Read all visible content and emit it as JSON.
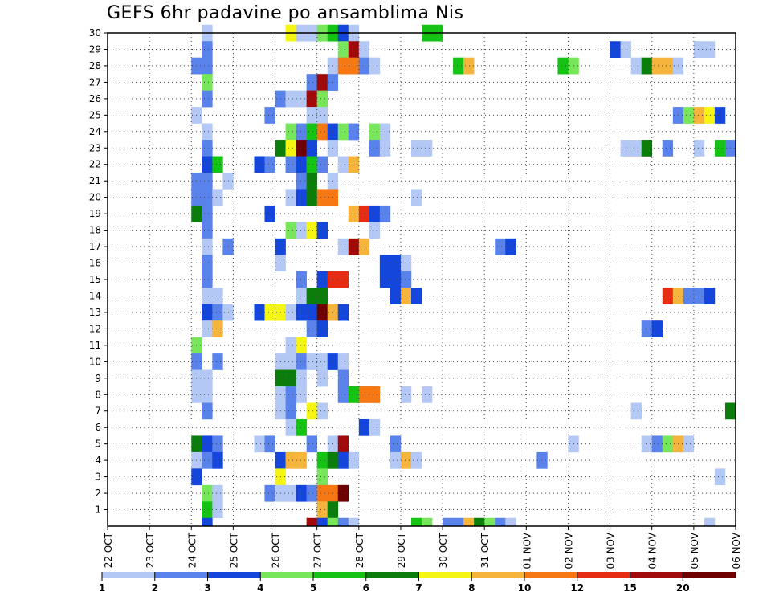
{
  "chart_data": {
    "type": "heatmap",
    "title": "GEFS 6hr padavine po ansamblima Nis",
    "xlabel": "",
    "ylabel": "",
    "y_min": 0,
    "y_max": 30,
    "y_ticks": [
      1,
      2,
      3,
      4,
      5,
      6,
      7,
      8,
      9,
      10,
      11,
      12,
      13,
      14,
      15,
      16,
      17,
      18,
      19,
      20,
      21,
      22,
      23,
      24,
      25,
      26,
      27,
      28,
      29,
      30
    ],
    "x_slots": 60,
    "x_ticks": [
      {
        "label": "22 OCT",
        "slot": 0
      },
      {
        "label": "23 OCT",
        "slot": 4
      },
      {
        "label": "24 OCT",
        "slot": 8
      },
      {
        "label": "25 OCT",
        "slot": 12
      },
      {
        "label": "26 OCT",
        "slot": 16
      },
      {
        "label": "27 OCT",
        "slot": 20
      },
      {
        "label": "28 OCT",
        "slot": 24
      },
      {
        "label": "29 OCT",
        "slot": 28
      },
      {
        "label": "30 OCT",
        "slot": 32
      },
      {
        "label": "31 OCT",
        "slot": 36
      },
      {
        "label": "01 NOV",
        "slot": 40
      },
      {
        "label": "02 NOV",
        "slot": 44
      },
      {
        "label": "03 NOV",
        "slot": 48
      },
      {
        "label": "04 NOV",
        "slot": 52
      },
      {
        "label": "05 NOV",
        "slot": 56
      },
      {
        "label": "06 NOV",
        "slot": 60
      }
    ],
    "legend_levels": [
      "1",
      "2",
      "3",
      "4",
      "5",
      "6",
      "7",
      "8",
      "10",
      "12",
      "15",
      "20"
    ],
    "colors": [
      "#b4c8f5",
      "#5a82eb",
      "#1446dc",
      "#78e65a",
      "#14c314",
      "#0a7d0a",
      "#f5f514",
      "#f5b43c",
      "#f57814",
      "#e62d14",
      "#a00a0a",
      "#6e0000"
    ],
    "cells": [
      {
        "x": 9,
        "y": 30,
        "c": 0
      },
      {
        "x": 17,
        "y": 30,
        "c": 6
      },
      {
        "x": 18,
        "y": 30,
        "c": 0
      },
      {
        "x": 19,
        "y": 30,
        "c": 0
      },
      {
        "x": 20,
        "y": 30,
        "c": 3
      },
      {
        "x": 21,
        "y": 30,
        "c": 4
      },
      {
        "x": 22,
        "y": 30,
        "c": 2
      },
      {
        "x": 23,
        "y": 30,
        "c": 0
      },
      {
        "x": 30,
        "y": 30,
        "c": 4
      },
      {
        "x": 31,
        "y": 30,
        "c": 4
      },
      {
        "x": 9,
        "y": 29,
        "c": 1
      },
      {
        "x": 22,
        "y": 29,
        "c": 3
      },
      {
        "x": 23,
        "y": 29,
        "c": 10
      },
      {
        "x": 24,
        "y": 29,
        "c": 0
      },
      {
        "x": 48,
        "y": 29,
        "c": 2
      },
      {
        "x": 49,
        "y": 29,
        "c": 0
      },
      {
        "x": 56,
        "y": 29,
        "c": 0
      },
      {
        "x": 57,
        "y": 29,
        "c": 0
      },
      {
        "x": 8,
        "y": 28,
        "c": 1
      },
      {
        "x": 9,
        "y": 28,
        "c": 1
      },
      {
        "x": 21,
        "y": 28,
        "c": 0
      },
      {
        "x": 22,
        "y": 28,
        "c": 8
      },
      {
        "x": 23,
        "y": 28,
        "c": 8
      },
      {
        "x": 24,
        "y": 28,
        "c": 1
      },
      {
        "x": 25,
        "y": 28,
        "c": 0
      },
      {
        "x": 33,
        "y": 28,
        "c": 4
      },
      {
        "x": 34,
        "y": 28,
        "c": 7
      },
      {
        "x": 43,
        "y": 28,
        "c": 4
      },
      {
        "x": 44,
        "y": 28,
        "c": 3
      },
      {
        "x": 50,
        "y": 28,
        "c": 0
      },
      {
        "x": 51,
        "y": 28,
        "c": 5
      },
      {
        "x": 52,
        "y": 28,
        "c": 7
      },
      {
        "x": 53,
        "y": 28,
        "c": 7
      },
      {
        "x": 54,
        "y": 28,
        "c": 0
      },
      {
        "x": 9,
        "y": 27,
        "c": 3
      },
      {
        "x": 19,
        "y": 27,
        "c": 1
      },
      {
        "x": 20,
        "y": 27,
        "c": 10
      },
      {
        "x": 21,
        "y": 27,
        "c": 1
      },
      {
        "x": 9,
        "y": 26,
        "c": 1
      },
      {
        "x": 16,
        "y": 26,
        "c": 1
      },
      {
        "x": 17,
        "y": 26,
        "c": 0
      },
      {
        "x": 18,
        "y": 26,
        "c": 0
      },
      {
        "x": 19,
        "y": 26,
        "c": 10
      },
      {
        "x": 20,
        "y": 26,
        "c": 3
      },
      {
        "x": 8,
        "y": 25,
        "c": 0
      },
      {
        "x": 15,
        "y": 25,
        "c": 1
      },
      {
        "x": 19,
        "y": 25,
        "c": 0
      },
      {
        "x": 20,
        "y": 25,
        "c": 0
      },
      {
        "x": 54,
        "y": 25,
        "c": 1
      },
      {
        "x": 55,
        "y": 25,
        "c": 3
      },
      {
        "x": 56,
        "y": 25,
        "c": 7
      },
      {
        "x": 57,
        "y": 25,
        "c": 6
      },
      {
        "x": 58,
        "y": 25,
        "c": 2
      },
      {
        "x": 9,
        "y": 24,
        "c": 0
      },
      {
        "x": 17,
        "y": 24,
        "c": 3
      },
      {
        "x": 18,
        "y": 24,
        "c": 1
      },
      {
        "x": 19,
        "y": 24,
        "c": 4
      },
      {
        "x": 20,
        "y": 24,
        "c": 8
      },
      {
        "x": 21,
        "y": 24,
        "c": 2
      },
      {
        "x": 22,
        "y": 24,
        "c": 3
      },
      {
        "x": 23,
        "y": 24,
        "c": 1
      },
      {
        "x": 25,
        "y": 24,
        "c": 3
      },
      {
        "x": 26,
        "y": 24,
        "c": 0
      },
      {
        "x": 9,
        "y": 23,
        "c": 1
      },
      {
        "x": 16,
        "y": 23,
        "c": 5
      },
      {
        "x": 17,
        "y": 23,
        "c": 6
      },
      {
        "x": 18,
        "y": 23,
        "c": 11
      },
      {
        "x": 19,
        "y": 23,
        "c": 2
      },
      {
        "x": 21,
        "y": 23,
        "c": 0
      },
      {
        "x": 25,
        "y": 23,
        "c": 1
      },
      {
        "x": 26,
        "y": 23,
        "c": 0
      },
      {
        "x": 29,
        "y": 23,
        "c": 0
      },
      {
        "x": 30,
        "y": 23,
        "c": 0
      },
      {
        "x": 49,
        "y": 23,
        "c": 0
      },
      {
        "x": 50,
        "y": 23,
        "c": 0
      },
      {
        "x": 51,
        "y": 23,
        "c": 5
      },
      {
        "x": 53,
        "y": 23,
        "c": 1
      },
      {
        "x": 56,
        "y": 23,
        "c": 0
      },
      {
        "x": 58,
        "y": 23,
        "c": 4
      },
      {
        "x": 59,
        "y": 23,
        "c": 1
      },
      {
        "x": 9,
        "y": 22,
        "c": 2
      },
      {
        "x": 10,
        "y": 22,
        "c": 4
      },
      {
        "x": 14,
        "y": 22,
        "c": 2
      },
      {
        "x": 15,
        "y": 22,
        "c": 1
      },
      {
        "x": 17,
        "y": 22,
        "c": 1
      },
      {
        "x": 18,
        "y": 22,
        "c": 2
      },
      {
        "x": 19,
        "y": 22,
        "c": 4
      },
      {
        "x": 20,
        "y": 22,
        "c": 1
      },
      {
        "x": 22,
        "y": 22,
        "c": 0
      },
      {
        "x": 23,
        "y": 22,
        "c": 7
      },
      {
        "x": 8,
        "y": 21,
        "c": 1
      },
      {
        "x": 9,
        "y": 21,
        "c": 1
      },
      {
        "x": 11,
        "y": 21,
        "c": 0
      },
      {
        "x": 18,
        "y": 21,
        "c": 1
      },
      {
        "x": 19,
        "y": 21,
        "c": 5
      },
      {
        "x": 21,
        "y": 21,
        "c": 0
      },
      {
        "x": 8,
        "y": 20,
        "c": 1
      },
      {
        "x": 9,
        "y": 20,
        "c": 1
      },
      {
        "x": 10,
        "y": 20,
        "c": 0
      },
      {
        "x": 17,
        "y": 20,
        "c": 0
      },
      {
        "x": 18,
        "y": 20,
        "c": 2
      },
      {
        "x": 19,
        "y": 20,
        "c": 5
      },
      {
        "x": 20,
        "y": 20,
        "c": 8
      },
      {
        "x": 21,
        "y": 20,
        "c": 8
      },
      {
        "x": 29,
        "y": 20,
        "c": 0
      },
      {
        "x": 8,
        "y": 19,
        "c": 5
      },
      {
        "x": 9,
        "y": 19,
        "c": 1
      },
      {
        "x": 15,
        "y": 19,
        "c": 2
      },
      {
        "x": 23,
        "y": 19,
        "c": 7
      },
      {
        "x": 24,
        "y": 19,
        "c": 9
      },
      {
        "x": 25,
        "y": 19,
        "c": 2
      },
      {
        "x": 26,
        "y": 19,
        "c": 1
      },
      {
        "x": 9,
        "y": 18,
        "c": 1
      },
      {
        "x": 17,
        "y": 18,
        "c": 3
      },
      {
        "x": 18,
        "y": 18,
        "c": 0
      },
      {
        "x": 19,
        "y": 18,
        "c": 6
      },
      {
        "x": 20,
        "y": 18,
        "c": 2
      },
      {
        "x": 25,
        "y": 18,
        "c": 0
      },
      {
        "x": 9,
        "y": 17,
        "c": 0
      },
      {
        "x": 11,
        "y": 17,
        "c": 1
      },
      {
        "x": 16,
        "y": 17,
        "c": 2
      },
      {
        "x": 22,
        "y": 17,
        "c": 0
      },
      {
        "x": 23,
        "y": 17,
        "c": 10
      },
      {
        "x": 24,
        "y": 17,
        "c": 7
      },
      {
        "x": 37,
        "y": 17,
        "c": 1
      },
      {
        "x": 38,
        "y": 17,
        "c": 2
      },
      {
        "x": 9,
        "y": 16,
        "c": 1
      },
      {
        "x": 16,
        "y": 16,
        "c": 0
      },
      {
        "x": 26,
        "y": 16,
        "c": 2
      },
      {
        "x": 27,
        "y": 16,
        "c": 2
      },
      {
        "x": 28,
        "y": 16,
        "c": 0
      },
      {
        "x": 9,
        "y": 15,
        "c": 1
      },
      {
        "x": 18,
        "y": 15,
        "c": 1
      },
      {
        "x": 20,
        "y": 15,
        "c": 2
      },
      {
        "x": 21,
        "y": 15,
        "c": 9
      },
      {
        "x": 22,
        "y": 15,
        "c": 9
      },
      {
        "x": 26,
        "y": 15,
        "c": 2
      },
      {
        "x": 27,
        "y": 15,
        "c": 2
      },
      {
        "x": 28,
        "y": 15,
        "c": 1
      },
      {
        "x": 9,
        "y": 14,
        "c": 0
      },
      {
        "x": 10,
        "y": 14,
        "c": 0
      },
      {
        "x": 18,
        "y": 14,
        "c": 0
      },
      {
        "x": 19,
        "y": 14,
        "c": 5
      },
      {
        "x": 20,
        "y": 14,
        "c": 5
      },
      {
        "x": 27,
        "y": 14,
        "c": 2
      },
      {
        "x": 28,
        "y": 14,
        "c": 7
      },
      {
        "x": 29,
        "y": 14,
        "c": 2
      },
      {
        "x": 53,
        "y": 14,
        "c": 9
      },
      {
        "x": 54,
        "y": 14,
        "c": 7
      },
      {
        "x": 55,
        "y": 14,
        "c": 1
      },
      {
        "x": 56,
        "y": 14,
        "c": 1
      },
      {
        "x": 57,
        "y": 14,
        "c": 2
      },
      {
        "x": 9,
        "y": 13,
        "c": 2
      },
      {
        "x": 10,
        "y": 13,
        "c": 1
      },
      {
        "x": 11,
        "y": 13,
        "c": 0
      },
      {
        "x": 14,
        "y": 13,
        "c": 2
      },
      {
        "x": 15,
        "y": 13,
        "c": 6
      },
      {
        "x": 16,
        "y": 13,
        "c": 6
      },
      {
        "x": 17,
        "y": 13,
        "c": 0
      },
      {
        "x": 18,
        "y": 13,
        "c": 2
      },
      {
        "x": 19,
        "y": 13,
        "c": 2
      },
      {
        "x": 20,
        "y": 13,
        "c": 11
      },
      {
        "x": 21,
        "y": 13,
        "c": 7
      },
      {
        "x": 22,
        "y": 13,
        "c": 2
      },
      {
        "x": 9,
        "y": 12,
        "c": 0
      },
      {
        "x": 10,
        "y": 12,
        "c": 7
      },
      {
        "x": 19,
        "y": 12,
        "c": 1
      },
      {
        "x": 20,
        "y": 12,
        "c": 2
      },
      {
        "x": 51,
        "y": 12,
        "c": 1
      },
      {
        "x": 52,
        "y": 12,
        "c": 2
      },
      {
        "x": 8,
        "y": 11,
        "c": 3
      },
      {
        "x": 17,
        "y": 11,
        "c": 0
      },
      {
        "x": 18,
        "y": 11,
        "c": 6
      },
      {
        "x": 8,
        "y": 10,
        "c": 1
      },
      {
        "x": 10,
        "y": 10,
        "c": 1
      },
      {
        "x": 16,
        "y": 10,
        "c": 0
      },
      {
        "x": 17,
        "y": 10,
        "c": 0
      },
      {
        "x": 18,
        "y": 10,
        "c": 1
      },
      {
        "x": 19,
        "y": 10,
        "c": 0
      },
      {
        "x": 20,
        "y": 10,
        "c": 0
      },
      {
        "x": 21,
        "y": 10,
        "c": 2
      },
      {
        "x": 22,
        "y": 10,
        "c": 0
      },
      {
        "x": 8,
        "y": 9,
        "c": 0
      },
      {
        "x": 9,
        "y": 9,
        "c": 0
      },
      {
        "x": 16,
        "y": 9,
        "c": 5
      },
      {
        "x": 17,
        "y": 9,
        "c": 5
      },
      {
        "x": 18,
        "y": 9,
        "c": 0
      },
      {
        "x": 20,
        "y": 9,
        "c": 0
      },
      {
        "x": 22,
        "y": 9,
        "c": 1
      },
      {
        "x": 8,
        "y": 8,
        "c": 0
      },
      {
        "x": 9,
        "y": 8,
        "c": 0
      },
      {
        "x": 16,
        "y": 8,
        "c": 0
      },
      {
        "x": 17,
        "y": 8,
        "c": 1
      },
      {
        "x": 18,
        "y": 8,
        "c": 0
      },
      {
        "x": 22,
        "y": 8,
        "c": 1
      },
      {
        "x": 23,
        "y": 8,
        "c": 4
      },
      {
        "x": 24,
        "y": 8,
        "c": 8
      },
      {
        "x": 25,
        "y": 8,
        "c": 8
      },
      {
        "x": 28,
        "y": 8,
        "c": 0
      },
      {
        "x": 30,
        "y": 8,
        "c": 0
      },
      {
        "x": 9,
        "y": 7,
        "c": 1
      },
      {
        "x": 16,
        "y": 7,
        "c": 0
      },
      {
        "x": 17,
        "y": 7,
        "c": 1
      },
      {
        "x": 19,
        "y": 7,
        "c": 6
      },
      {
        "x": 20,
        "y": 7,
        "c": 0
      },
      {
        "x": 50,
        "y": 7,
        "c": 0
      },
      {
        "x": 59,
        "y": 7,
        "c": 5
      },
      {
        "x": 17,
        "y": 6,
        "c": 0
      },
      {
        "x": 18,
        "y": 6,
        "c": 4
      },
      {
        "x": 24,
        "y": 6,
        "c": 2
      },
      {
        "x": 25,
        "y": 6,
        "c": 0
      },
      {
        "x": 8,
        "y": 5,
        "c": 5
      },
      {
        "x": 9,
        "y": 5,
        "c": 2
      },
      {
        "x": 10,
        "y": 5,
        "c": 1
      },
      {
        "x": 14,
        "y": 5,
        "c": 0
      },
      {
        "x": 15,
        "y": 5,
        "c": 1
      },
      {
        "x": 19,
        "y": 5,
        "c": 1
      },
      {
        "x": 21,
        "y": 5,
        "c": 0
      },
      {
        "x": 22,
        "y": 5,
        "c": 10
      },
      {
        "x": 27,
        "y": 5,
        "c": 1
      },
      {
        "x": 44,
        "y": 5,
        "c": 0
      },
      {
        "x": 51,
        "y": 5,
        "c": 0
      },
      {
        "x": 52,
        "y": 5,
        "c": 1
      },
      {
        "x": 53,
        "y": 5,
        "c": 3
      },
      {
        "x": 54,
        "y": 5,
        "c": 7
      },
      {
        "x": 55,
        "y": 5,
        "c": 0
      },
      {
        "x": 8,
        "y": 4,
        "c": 0
      },
      {
        "x": 9,
        "y": 4,
        "c": 1
      },
      {
        "x": 10,
        "y": 4,
        "c": 2
      },
      {
        "x": 16,
        "y": 4,
        "c": 2
      },
      {
        "x": 17,
        "y": 4,
        "c": 7
      },
      {
        "x": 18,
        "y": 4,
        "c": 7
      },
      {
        "x": 20,
        "y": 4,
        "c": 4
      },
      {
        "x": 21,
        "y": 4,
        "c": 5
      },
      {
        "x": 22,
        "y": 4,
        "c": 2
      },
      {
        "x": 23,
        "y": 4,
        "c": 0
      },
      {
        "x": 27,
        "y": 4,
        "c": 0
      },
      {
        "x": 28,
        "y": 4,
        "c": 7
      },
      {
        "x": 29,
        "y": 4,
        "c": 0
      },
      {
        "x": 41,
        "y": 4,
        "c": 1
      },
      {
        "x": 8,
        "y": 3,
        "c": 2
      },
      {
        "x": 16,
        "y": 3,
        "c": 6
      },
      {
        "x": 20,
        "y": 3,
        "c": 3
      },
      {
        "x": 58,
        "y": 3,
        "c": 0
      },
      {
        "x": 9,
        "y": 2,
        "c": 3
      },
      {
        "x": 10,
        "y": 2,
        "c": 0
      },
      {
        "x": 15,
        "y": 2,
        "c": 1
      },
      {
        "x": 16,
        "y": 2,
        "c": 0
      },
      {
        "x": 17,
        "y": 2,
        "c": 0
      },
      {
        "x": 18,
        "y": 2,
        "c": 2
      },
      {
        "x": 19,
        "y": 2,
        "c": 1
      },
      {
        "x": 20,
        "y": 2,
        "c": 8
      },
      {
        "x": 21,
        "y": 2,
        "c": 8
      },
      {
        "x": 22,
        "y": 2,
        "c": 11
      },
      {
        "x": 9,
        "y": 1,
        "c": 4
      },
      {
        "x": 10,
        "y": 1,
        "c": 0
      },
      {
        "x": 20,
        "y": 1,
        "c": 7
      },
      {
        "x": 21,
        "y": 1,
        "c": 5
      },
      {
        "x": 9,
        "y": 0,
        "c": 2
      },
      {
        "x": 19,
        "y": 0,
        "c": 10
      },
      {
        "x": 20,
        "y": 0,
        "c": 2
      },
      {
        "x": 21,
        "y": 0,
        "c": 3
      },
      {
        "x": 22,
        "y": 0,
        "c": 1
      },
      {
        "x": 23,
        "y": 0,
        "c": 0
      },
      {
        "x": 29,
        "y": 0,
        "c": 4
      },
      {
        "x": 30,
        "y": 0,
        "c": 3
      },
      {
        "x": 32,
        "y": 0,
        "c": 1
      },
      {
        "x": 33,
        "y": 0,
        "c": 1
      },
      {
        "x": 34,
        "y": 0,
        "c": 7
      },
      {
        "x": 35,
        "y": 0,
        "c": 5
      },
      {
        "x": 36,
        "y": 0,
        "c": 3
      },
      {
        "x": 37,
        "y": 0,
        "c": 1
      },
      {
        "x": 38,
        "y": 0,
        "c": 0
      },
      {
        "x": 57,
        "y": 0,
        "c": 0
      }
    ]
  }
}
